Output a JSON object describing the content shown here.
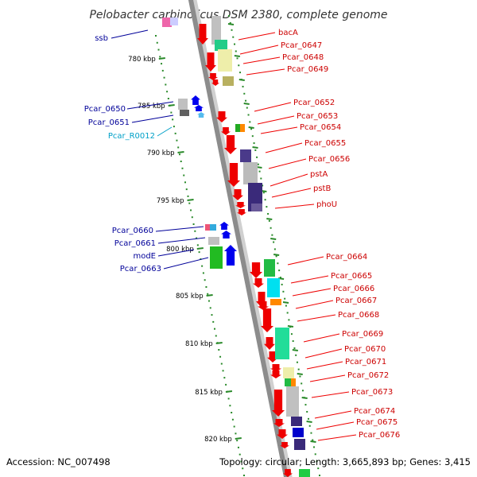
{
  "title": "Pelobacter carbinolicus DSM 2380, complete genome",
  "footer": {
    "accession": "Accession: NC_007498",
    "summary": "Topology: circular; Length: 3,665,893 bp; Genes: 3,415"
  },
  "colors": {
    "backbone": "#8c8c8c",
    "ruler_dots": "#2a8a2a",
    "forward_cds": "#0000ee",
    "reverse_cds": "#ee0000",
    "forward_label": "#000099",
    "reverse_label": "#cc0000",
    "rna_label": "#00a0c8"
  },
  "scale_ticks": [
    "780 kbp",
    "785 kbp",
    "790 kbp",
    "795 kbp",
    "800 kbp",
    "805 kbp",
    "810 kbp",
    "815 kbp",
    "820 kbp"
  ],
  "left_labels": [
    {
      "text": "ssb",
      "kind": "cds"
    },
    {
      "text": "Pcar_0650",
      "kind": "cds"
    },
    {
      "text": "Pcar_0651",
      "kind": "cds"
    },
    {
      "text": "Pcar_R0012",
      "kind": "rna"
    },
    {
      "text": "Pcar_0660",
      "kind": "cds"
    },
    {
      "text": "Pcar_0661",
      "kind": "cds"
    },
    {
      "text": "modE",
      "kind": "cds"
    },
    {
      "text": "Pcar_0663",
      "kind": "cds"
    }
  ],
  "right_labels": [
    "bacA",
    "Pcar_0647",
    "Pcar_0648",
    "Pcar_0649",
    "Pcar_0652",
    "Pcar_0653",
    "Pcar_0654",
    "Pcar_0655",
    "Pcar_0656",
    "pstA",
    "pstB",
    "phoU",
    "Pcar_0664",
    "Pcar_0665",
    "Pcar_0666",
    "Pcar_0667",
    "Pcar_0668",
    "Pcar_0669",
    "Pcar_0670",
    "Pcar_0671",
    "Pcar_0672",
    "Pcar_0673",
    "Pcar_0674",
    "Pcar_0675",
    "Pcar_0676"
  ]
}
